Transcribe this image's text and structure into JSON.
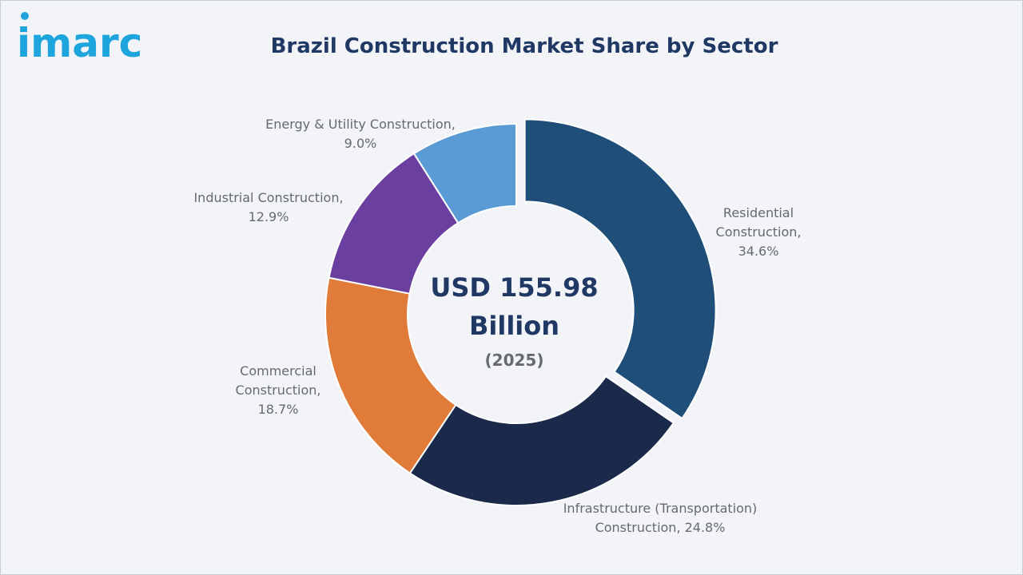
{
  "logo": {
    "text": "imarc",
    "color": "#1ea5dd"
  },
  "chart_data": {
    "type": "pie",
    "title": "Brazil Construction Market Share by Sector",
    "center_value": "USD 155.98",
    "center_unit": "Billion",
    "center_year": "(2025)",
    "series": [
      {
        "name": "Residential Construction",
        "value": 34.6,
        "label_lines": [
          "Residential",
          "Construction,",
          "34.6%"
        ],
        "color": "#1f4e79",
        "exploded": true
      },
      {
        "name": "Infrastructure (Transportation) Construction",
        "value": 24.8,
        "label_lines": [
          "Infrastructure (Transportation)",
          "Construction, 24.8%"
        ],
        "color": "#1b2a4b",
        "exploded": false
      },
      {
        "name": "Commercial Construction",
        "value": 18.7,
        "label_lines": [
          "Commercial",
          "Construction,",
          "18.7%"
        ],
        "color": "#e07b39",
        "exploded": false
      },
      {
        "name": "Industrial Construction",
        "value": 12.9,
        "label_lines": [
          "Industrial Construction,",
          "12.9%"
        ],
        "color": "#6a3fa0",
        "exploded": false
      },
      {
        "name": "Energy & Utility Construction",
        "value": 9.0,
        "label_lines": [
          "Energy & Utility Construction,",
          "9.0%"
        ],
        "color": "#5b9bd5",
        "exploded": false
      }
    ],
    "legend": "none"
  }
}
